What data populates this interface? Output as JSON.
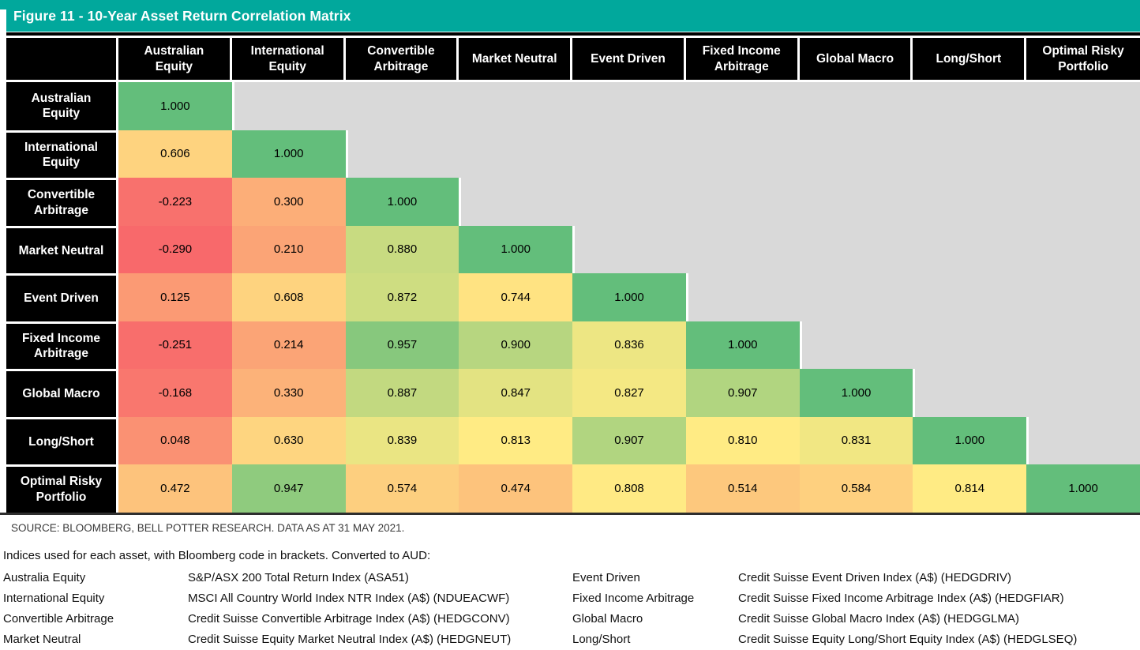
{
  "title": "Figure 11 - 10-Year Asset Return Correlation Matrix",
  "source_line": "SOURCE: BLOOMBERG, BELL POTTER RESEARCH. DATA AS AT 31 MAY 2021.",
  "footnote_intro": "Indices used for each asset, with Bloomberg code in brackets. Converted to AUD:",
  "colors": {
    "accent_teal": "#01A89C",
    "header_background": "#000000",
    "header_text": "#FFFFFF",
    "empty_cell_gray": "#D9D9D9"
  },
  "chart_data": {
    "type": "heatmap",
    "title": "Figure 11 - 10-Year Asset Return Correlation Matrix",
    "col_labels": [
      "Australian Equity",
      "International Equity",
      "Convertible Arbitrage",
      "Market Neutral",
      "Event Driven",
      "Fixed Income Arbitrage",
      "Global Macro",
      "Long/Short",
      "Optimal Risky Portfolio"
    ],
    "row_labels": [
      "Australian Equity",
      "International Equity",
      "Convertible Arbitrage",
      "Market Neutral",
      "Event Driven",
      "Fixed Income Arbitrage",
      "Global Macro",
      "Long/Short",
      "Optimal Risky Portfolio"
    ],
    "values": [
      [
        1.0
      ],
      [
        0.606,
        1.0
      ],
      [
        -0.223,
        0.3,
        1.0
      ],
      [
        -0.29,
        0.21,
        0.88,
        1.0
      ],
      [
        0.125,
        0.608,
        0.872,
        0.744,
        1.0
      ],
      [
        -0.251,
        0.214,
        0.957,
        0.9,
        0.836,
        1.0
      ],
      [
        -0.168,
        0.33,
        0.887,
        0.847,
        0.827,
        0.907,
        1.0
      ],
      [
        0.048,
        0.63,
        0.839,
        0.813,
        0.907,
        0.81,
        0.831,
        1.0
      ],
      [
        0.472,
        0.947,
        0.574,
        0.474,
        0.808,
        0.514,
        0.584,
        0.814,
        1.0
      ]
    ],
    "value_decimals": 3,
    "shape": "lower-triangular",
    "colormap": {
      "min_value": -0.29,
      "mid_value": 0.814,
      "max_value": 1.0,
      "min_color": "#F8696B",
      "mid_color": "#FFEB84",
      "max_color": "#63BE7B",
      "empty_color": "#D9D9D9"
    }
  },
  "index_list": [
    {
      "asset": "Australia Equity",
      "index": "S&P/ASX 200 Total Return Index (ASA51)"
    },
    {
      "asset": "International Equity",
      "index": "MSCI All Country World Index NTR Index (A$) (NDUEACWF)"
    },
    {
      "asset": "Convertible Arbitrage",
      "index": "Credit Suisse Convertible Arbitrage Index (A$) (HEDGCONV)"
    },
    {
      "asset": "Market Neutral",
      "index": "Credit Suisse Equity Market Neutral Index (A$) (HEDGNEUT)"
    },
    {
      "asset": "Event Driven",
      "index": "Credit Suisse Event Driven Index (A$) (HEDGDRIV)"
    },
    {
      "asset": "Fixed Income Arbitrage",
      "index": "Credit Suisse Fixed Income Arbitrage Index (A$) (HEDGFIAR)"
    },
    {
      "asset": "Global Macro",
      "index": "Credit Suisse Global Macro Index (A$) (HEDGGLMA)"
    },
    {
      "asset": "Long/Short",
      "index": "Credit Suisse Equity Long/Short Equity Index (A$) (HEDGLSEQ)"
    }
  ]
}
